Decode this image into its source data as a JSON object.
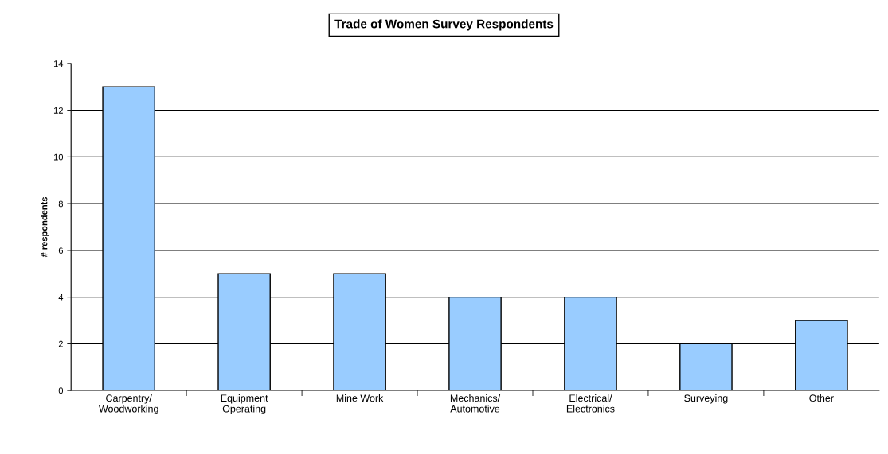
{
  "chart_data": {
    "type": "bar",
    "title": "Trade of Women Survey Respondents",
    "ylabel": "# respondents",
    "categories": [
      "Carpentry/\nWoodworking",
      "Equipment\nOperating",
      "Mine Work",
      "Mechanics/\nAutomotive",
      "Electrical/\nElectronics",
      "Surveying",
      "Other"
    ],
    "values": [
      13,
      5,
      5,
      4,
      4,
      2,
      3
    ],
    "color": "#99ccff",
    "ylim": [
      0,
      14
    ],
    "yticks": [
      0,
      2,
      4,
      6,
      8,
      10,
      12,
      14
    ],
    "grid": "y",
    "legend": false
  }
}
